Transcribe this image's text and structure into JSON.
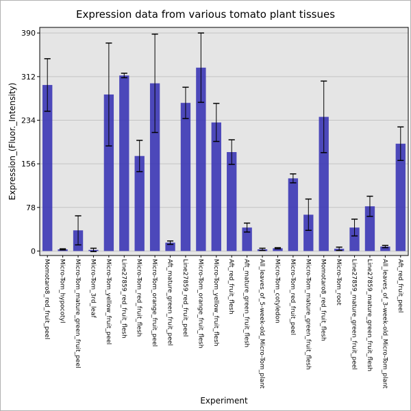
{
  "chart_data": {
    "type": "bar",
    "title": "Expression data from various tomato plant tissues",
    "xlabel": "Experiment",
    "ylabel": "Expression_(Fluor._Intensity)",
    "ylim": [
      -8,
      400
    ],
    "yticks": [
      0,
      78,
      156,
      234,
      312,
      390
    ],
    "grid": true,
    "bar_color": "#3b36b5",
    "plot_background": "#e5e5e5",
    "categories": [
      "Momotaro8_red_fruit_peel",
      "Micro-Tom_hypocotyl",
      "Micro-Tom_mature_green_fruit_peel",
      "Micro-Tom_3rd_leaf",
      "Micro-Tom_yellow_fruit_peel",
      "Line27859_red_fruit_flesh",
      "Micro-Tom_red_fruit_flesh",
      "Micro-Tom_orange_fruit_peel",
      "Aft_mature_green_fruit_peel",
      "Line27859_red_fruit_peel",
      "Micro-Tom_orange_fruit_flesh",
      "Micro-Tom_yellow_fruit_flesh",
      "Aft_red_fruit_flesh",
      "Aft_mature_green_fruit_flesh",
      "All_leaves_of_5-week-old_Micro-Tom_plant",
      "Micro-Tom_cotyledon",
      "Micro-Tom_red_fruit_peel",
      "Micro-Tom_mature_green_fruit_flesh",
      "Momotaro8_red_fruit_flesh",
      "Micro-Tom_root",
      "Line27859_mature_green_fruit_peel",
      "Line27859_mature_green_fruit_flesh",
      "All_leaves_of_3-week-old_Micro-Tom_plant",
      "Aft_red_fruit_peel"
    ],
    "values": [
      297,
      3,
      37,
      2,
      280,
      314,
      170,
      300,
      15,
      265,
      328,
      230,
      177,
      42,
      3,
      5,
      130,
      65,
      240,
      4,
      42,
      80,
      8,
      192
    ],
    "errors": [
      47,
      1,
      26,
      3,
      92,
      4,
      28,
      88,
      3,
      28,
      62,
      34,
      22,
      8,
      2,
      1,
      8,
      28,
      64,
      3,
      15,
      18,
      2,
      30
    ]
  }
}
